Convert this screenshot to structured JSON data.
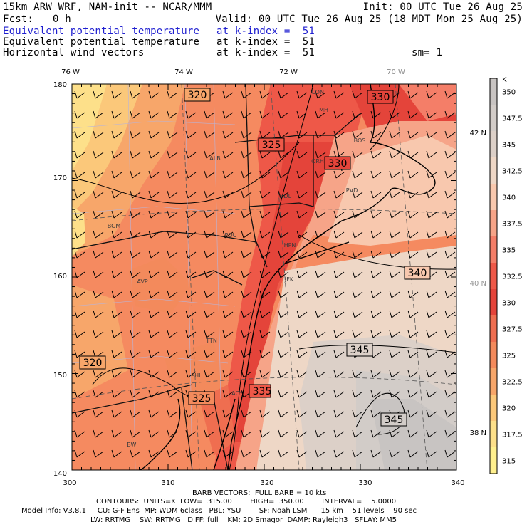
{
  "header": {
    "model": "15km ARW WRF, NAM-init -- NCAR/MMM",
    "init": "Init: 00 UTC Tue 26 Aug 25",
    "fcst_label": "Fcst:",
    "fcst_value": "0 h",
    "valid": "Valid: 00 UTC Tue 26 Aug 25 (18 MDT Mon 25 Aug 25)",
    "fields": [
      {
        "name": "Equivalent potential temperature",
        "level": "at k-index =  51",
        "highlight": true
      },
      {
        "name": "Equivalent potential temperature",
        "level": "at k-index =  51",
        "highlight": false
      },
      {
        "name": "Horizontal wind vectors",
        "level": "at k-index =  51",
        "highlight": false
      }
    ],
    "smoothing": "sm= 1"
  },
  "map": {
    "top_lon_labels": [
      "76 W",
      "74 W",
      "72 W",
      "70 W"
    ],
    "bottom_x_labels": [
      "300",
      "310",
      "320",
      "330",
      "340"
    ],
    "left_y_labels": [
      "180",
      "170",
      "160",
      "150",
      "140"
    ],
    "right_lat_labels": [
      "42 N",
      "40 N",
      "38 N"
    ],
    "contour_labels": [
      "320",
      "325",
      "330",
      "330",
      "340",
      "345",
      "345",
      "320",
      "325",
      "335"
    ],
    "stations": [
      "CON",
      "MHT",
      "BOS",
      "ORH",
      "ALB",
      "BDL",
      "PVD",
      "BGM",
      "POU",
      "HPN",
      "JFK",
      "AVP",
      "TTN",
      "PHL",
      "ACY",
      "BWI"
    ]
  },
  "colorbar": {
    "unit": "K",
    "labels": [
      "350",
      "347.5",
      "345",
      "342.5",
      "340",
      "337.5",
      "335",
      "332.5",
      "330",
      "327.5",
      "325",
      "322.5",
      "320",
      "317.5",
      "315"
    ],
    "colors": [
      "#c8c4c2",
      "#d2ccc8",
      "#dcd0c8",
      "#eed7c6",
      "#f8c8ae",
      "#f6a488",
      "#f47e68",
      "#ee5848",
      "#e4443a",
      "#ef6e50",
      "#f38a5c",
      "#f7a66a",
      "#fbc87a",
      "#fde08a",
      "#fff08e"
    ]
  },
  "footer": {
    "barb": "BARB VECTORS:  FULL BARB = 10 kts",
    "contours": "CONTOURS:  UNITS=K  LOW=  315.00        HIGH=  350.00        INTERVAL=    5.0000",
    "model_info": "Model Info: V3.8.1     CU: G-F Ens  MP: WDM 6class   PBL: YSU        SF: Noah LSM      15 km    51 levels    90 sec",
    "physics": "LW: RRTMG    SW: RRTMG   DIFF: full    KM: 2D Smagor  DAMP: Rayleigh3   SFLAY: MM5"
  }
}
